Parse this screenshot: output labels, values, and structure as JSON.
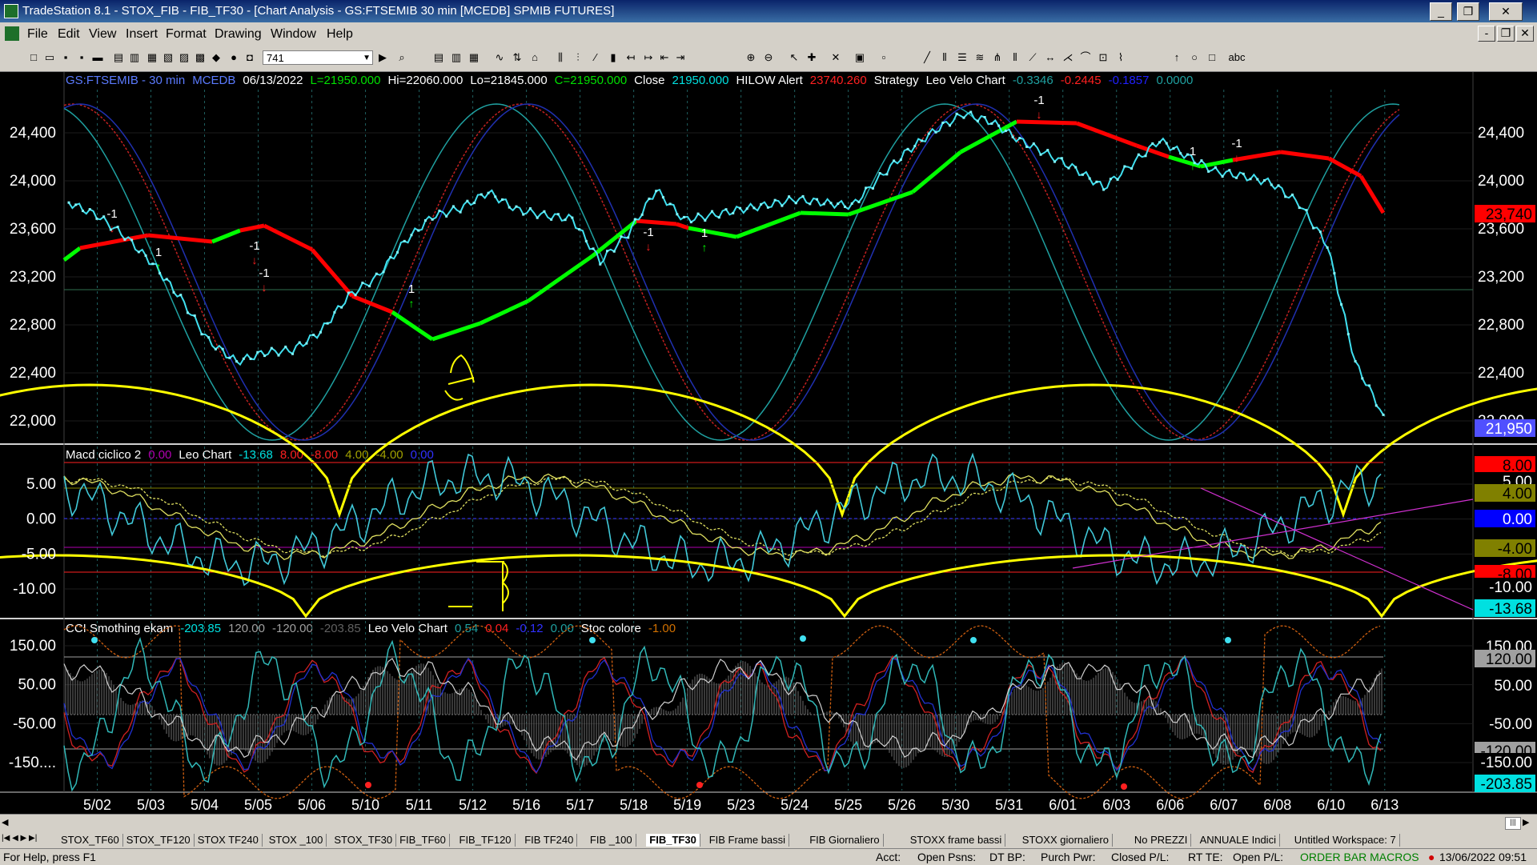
{
  "window": {
    "title": "TradeStation 8.1 - STOX_FIB - FIB_TF30 - [Chart Analysis - GS:FTSEMIB  30 min  [MCEDB] SPMIB FUTURES]",
    "controls": [
      "_",
      "❐",
      "✕"
    ],
    "mdi_controls": [
      "-",
      "❐",
      "✕"
    ]
  },
  "menu": [
    "File",
    "Edit",
    "View",
    "Insert",
    "Format",
    "Drawing",
    "Window",
    "Help"
  ],
  "toolbar": {
    "bar_count": "741"
  },
  "panel1": {
    "header": [
      {
        "t": "GS:FTSEMIB - 30 min",
        "c": "#5b7bff"
      },
      {
        "t": "MCEDB",
        "c": "#5b7bff"
      },
      {
        "t": "06/13/2022",
        "c": "#ffffff"
      },
      {
        "t": "L=21950.000",
        "c": "#00e000"
      },
      {
        "t": "Hi=22060.000",
        "c": "#ffffff"
      },
      {
        "t": "Lo=21845.000",
        "c": "#ffffff"
      },
      {
        "t": "C=21950.000",
        "c": "#00e000"
      },
      {
        "t": "Close",
        "c": "#ffffff"
      },
      {
        "t": "21950.000",
        "c": "#00e0e0"
      },
      {
        "t": "HILOW Alert",
        "c": "#ffffff"
      },
      {
        "t": "23740.260",
        "c": "#ff2020"
      },
      {
        "t": "Strategy",
        "c": "#ffffff"
      },
      {
        "t": "Leo Velo Chart",
        "c": "#ffffff"
      },
      {
        "t": "-0.3346",
        "c": "#1fa0a0"
      },
      {
        "t": "-0.2445",
        "c": "#ff2020"
      },
      {
        "t": "-0.1857",
        "c": "#2020ff"
      },
      {
        "t": "0.0000",
        "c": "#1fa0a0"
      }
    ],
    "yaxis": [
      "24,400",
      "24,000",
      "23,600",
      "23,200",
      "22,800",
      "22,400",
      "22,000"
    ],
    "badges": [
      {
        "t": "23,740",
        "bg": "#ff0000",
        "fg": "#000000"
      },
      {
        "t": "21,950",
        "bg": "#5050ff",
        "fg": "#ffffff"
      }
    ],
    "annotation": "A",
    "signals": [
      "-1",
      "1",
      "-1",
      "-1",
      "1",
      "-1",
      "1",
      "-1",
      "1",
      "-1"
    ]
  },
  "panel2": {
    "header": [
      {
        "t": "Macd ciclico 2",
        "c": "#ffffff"
      },
      {
        "t": "0.00",
        "c": "#b000b0"
      },
      {
        "t": "Leo Chart",
        "c": "#ffffff"
      },
      {
        "t": "-13.68",
        "c": "#00e0e0"
      },
      {
        "t": "8.00",
        "c": "#ff2020"
      },
      {
        "t": "-8.00",
        "c": "#ff2020"
      },
      {
        "t": "4.00",
        "c": "#a0a000"
      },
      {
        "t": "-4.00",
        "c": "#a0a000"
      },
      {
        "t": "0.00",
        "c": "#3030ff"
      }
    ],
    "yaxis": [
      "5.00",
      "0.00",
      "-5.00",
      "-10.00"
    ],
    "badges": [
      {
        "t": "8.00",
        "bg": "#ff0000",
        "fg": "#000000"
      },
      {
        "t": "5.00",
        "bg": "#000000",
        "fg": "#ffffff"
      },
      {
        "t": "4.00",
        "bg": "#808000",
        "fg": "#000000"
      },
      {
        "t": "0.00",
        "bg": "#0000ff",
        "fg": "#ffffff"
      },
      {
        "t": "-4.00",
        "bg": "#808000",
        "fg": "#000000"
      },
      {
        "t": "-8.00",
        "bg": "#ff0000",
        "fg": "#000000"
      },
      {
        "t": "-10.00",
        "bg": "#000000",
        "fg": "#ffffff"
      },
      {
        "t": "-13.68",
        "bg": "#00e0e0",
        "fg": "#000000"
      }
    ],
    "annotation": "B"
  },
  "panel3": {
    "header": [
      {
        "t": "CCI Smothing ekam",
        "c": "#ffffff"
      },
      {
        "t": "-203.85",
        "c": "#00e0e0"
      },
      {
        "t": "120.00",
        "c": "#a0a0a0"
      },
      {
        "t": "-120.00",
        "c": "#a0a0a0"
      },
      {
        "t": "-203.85",
        "c": "#606060"
      },
      {
        "t": "Leo Velo Chart",
        "c": "#ffffff"
      },
      {
        "t": "0.54",
        "c": "#1fa0a0"
      },
      {
        "t": "0.04",
        "c": "#ff2020"
      },
      {
        "t": "-0.12",
        "c": "#3030ff"
      },
      {
        "t": "0.00",
        "c": "#1fa0a0"
      },
      {
        "t": "Stoc colore",
        "c": "#ffffff"
      },
      {
        "t": "-1.00",
        "c": "#d07000"
      }
    ],
    "yaxis": [
      "150.00",
      "50.00",
      "-50.00",
      "-150...."
    ],
    "badges": [
      {
        "t": "150.00",
        "bg": "#000000",
        "fg": "#ffffff"
      },
      {
        "t": "120.00",
        "bg": "#a0a0a0",
        "fg": "#000000"
      },
      {
        "t": "50.00",
        "bg": "#000000",
        "fg": "#ffffff"
      },
      {
        "t": "-50.00",
        "bg": "#000000",
        "fg": "#ffffff"
      },
      {
        "t": "-120.00",
        "bg": "#a0a0a0",
        "fg": "#000000"
      },
      {
        "t": "-150.00",
        "bg": "#000000",
        "fg": "#ffffff"
      },
      {
        "t": "-203.85",
        "bg": "#00e0e0",
        "fg": "#000000"
      }
    ]
  },
  "xaxis": [
    "5/02",
    "5/03",
    "5/04",
    "5/05",
    "5/06",
    "5/10",
    "5/11",
    "5/12",
    "5/16",
    "5/17",
    "5/18",
    "5/19",
    "5/23",
    "5/24",
    "5/25",
    "5/26",
    "5/30",
    "5/31",
    "6/01",
    "6/03",
    "6/06",
    "6/07",
    "6/08",
    "6/10",
    "6/13"
  ],
  "price_close": [
    23790,
    23680,
    23500,
    23260,
    22960,
    22590,
    22410,
    22490,
    22510,
    22670,
    22980,
    23140,
    23450,
    23670,
    23740,
    23880,
    23730,
    23680,
    23650,
    23280,
    23520,
    23900,
    23640,
    23680,
    23730,
    23770,
    23820,
    23790,
    23760,
    24010,
    24240,
    24420,
    24560,
    24490,
    24330,
    24210,
    24080,
    23920,
    24120,
    24330,
    24190,
    24060,
    24020,
    23960,
    23780,
    23420,
    22400,
    21950
  ],
  "workspace_tabs": [
    "STOX_TF60",
    "STOX_TF120",
    "STOX TF240",
    "STOX _100",
    "STOX_TF30",
    "FIB_TF60",
    "FIB_TF120",
    "FIB TF240",
    "FIB _100",
    "FIB_TF30",
    "FIB Frame bassi",
    "FIB Giornaliero",
    "STOXX frame bassi",
    "STOXX giornaliero",
    "No PREZZI",
    "ANNUALE Indici",
    "Untitled Workspace: 7"
  ],
  "active_tab": "FIB_TF30",
  "status": {
    "help": "For Help, press F1",
    "acct": "Acct:",
    "open_psns": "Open Psns:",
    "dt_bp": "DT BP:",
    "purch_pwr": "Purch Pwr:",
    "closed_pl": "Closed P/L:",
    "rt_te": "RT TE:",
    "open_pl": "Open P/L:",
    "order_bar_macros": "ORDER BAR MACROS",
    "datetime": "13/06/2022 09:51"
  },
  "colors": {
    "background": "#000000",
    "price": "#40e0f0",
    "hilow_up": "#00ff00",
    "hilow_down": "#ff0000",
    "cycle": "#ffff00",
    "grid": "#303030",
    "axis_text": "#ffffff"
  }
}
